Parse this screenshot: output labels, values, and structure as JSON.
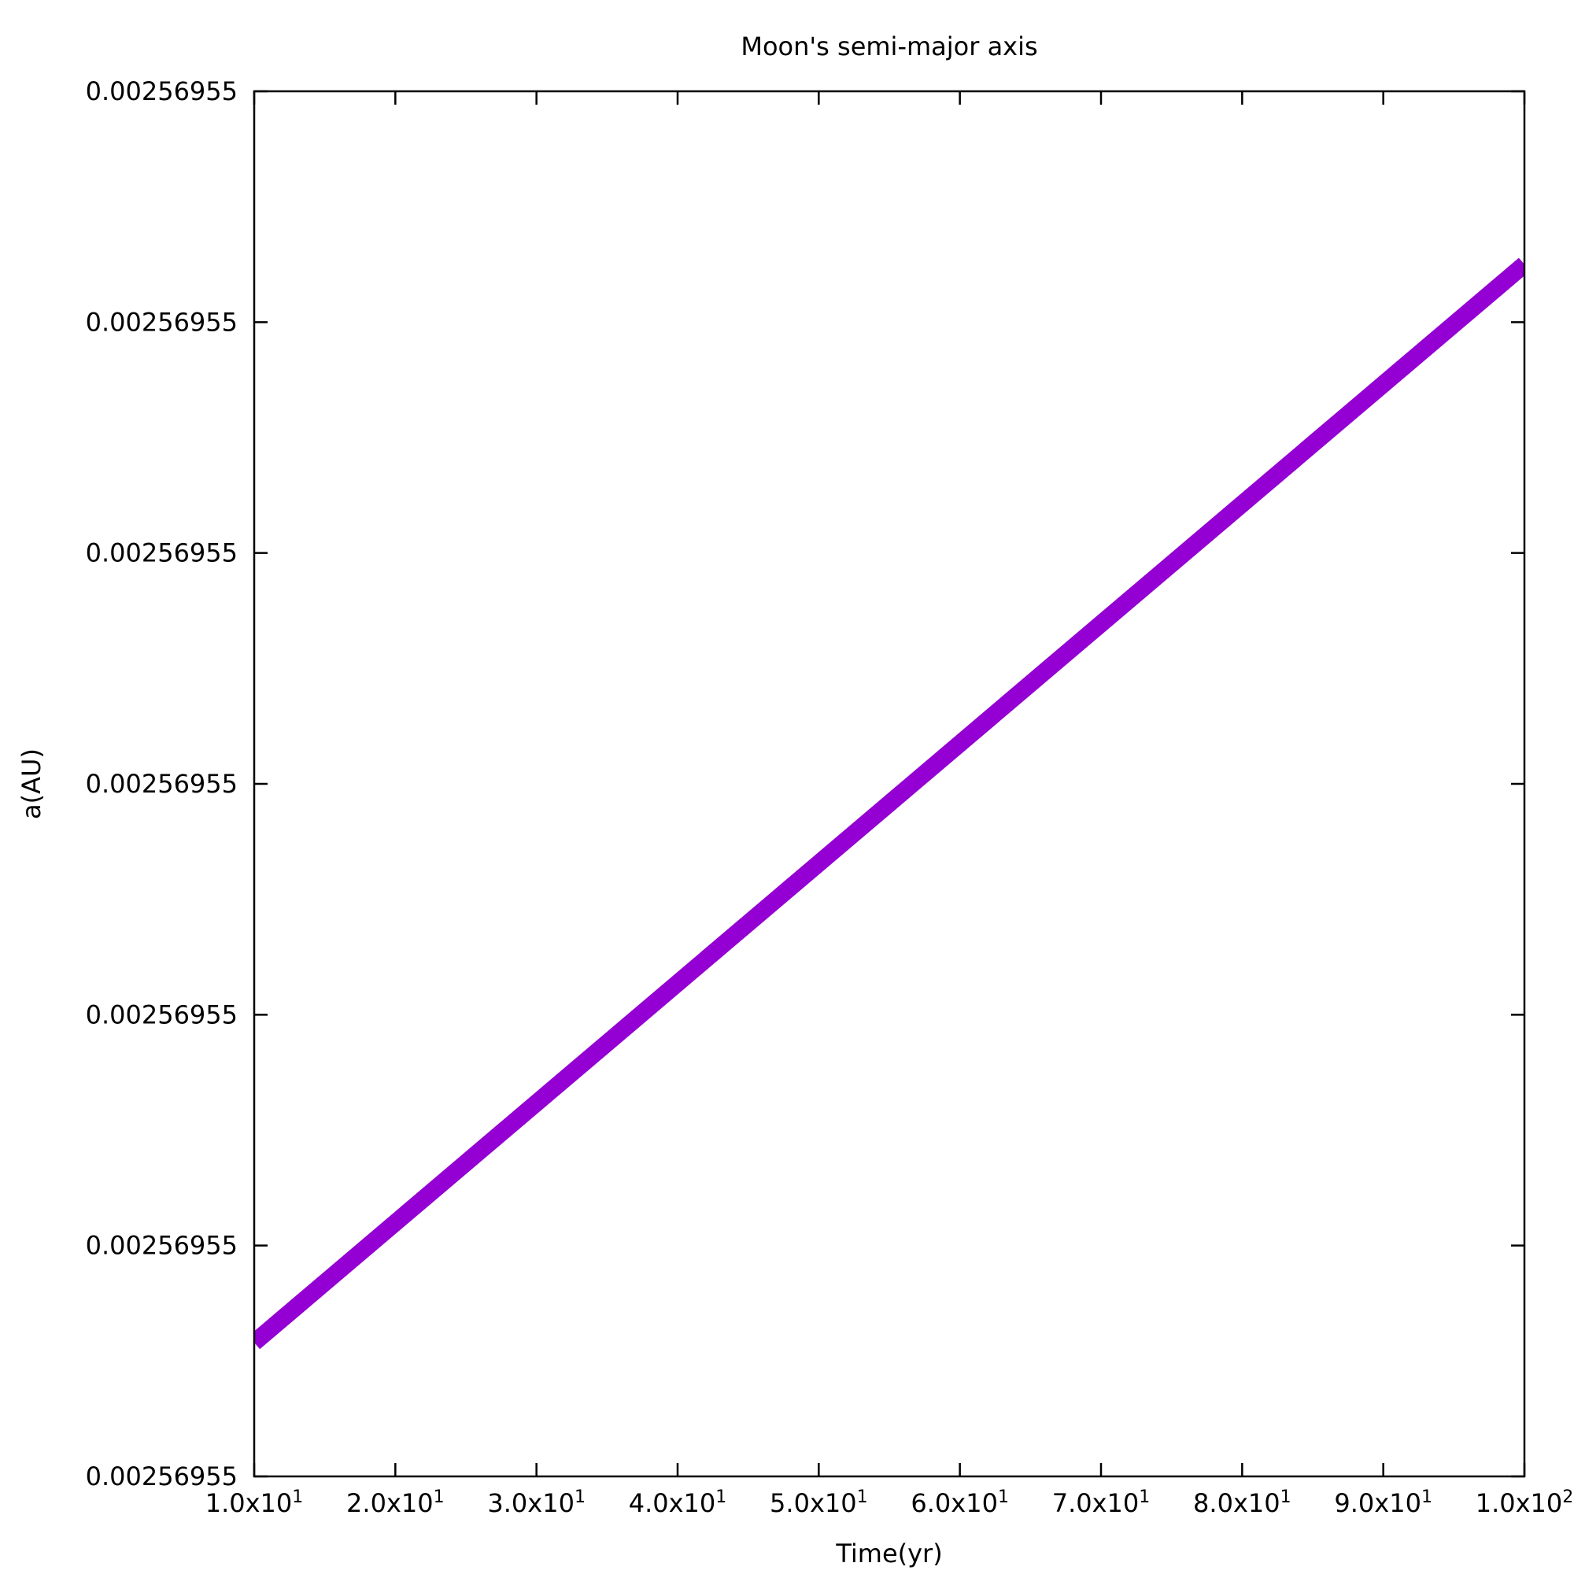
{
  "chart_data": {
    "type": "line",
    "title": "Moon's semi-major axis",
    "xlabel": "Time(yr)",
    "ylabel": "a(AU)",
    "x_ticks": [
      {
        "value": 10,
        "mantissa": "1.0x10",
        "exp": "1"
      },
      {
        "value": 20,
        "mantissa": "2.0x10",
        "exp": "1"
      },
      {
        "value": 30,
        "mantissa": "3.0x10",
        "exp": "1"
      },
      {
        "value": 40,
        "mantissa": "4.0x10",
        "exp": "1"
      },
      {
        "value": 50,
        "mantissa": "5.0x10",
        "exp": "1"
      },
      {
        "value": 60,
        "mantissa": "6.0x10",
        "exp": "1"
      },
      {
        "value": 70,
        "mantissa": "7.0x10",
        "exp": "1"
      },
      {
        "value": 80,
        "mantissa": "8.0x10",
        "exp": "1"
      },
      {
        "value": 90,
        "mantissa": "9.0x10",
        "exp": "1"
      },
      {
        "value": 100,
        "mantissa": "1.0x10",
        "exp": "2"
      }
    ],
    "y_ticks": [
      {
        "value": 0,
        "label": "0.00256955"
      },
      {
        "value": 1,
        "label": "0.00256955"
      },
      {
        "value": 2,
        "label": "0.00256955"
      },
      {
        "value": 3,
        "label": "0.00256955"
      },
      {
        "value": 4,
        "label": "0.00256955"
      },
      {
        "value": 5,
        "label": "0.00256955"
      },
      {
        "value": 6,
        "label": "0.00256955"
      }
    ],
    "xlim": [
      10,
      100
    ],
    "ylim": [
      0,
      6
    ],
    "grid": false,
    "series": [
      {
        "color": "#9400d3",
        "x": [
          10,
          100
        ],
        "y": [
          0.58,
          5.25
        ]
      }
    ]
  }
}
